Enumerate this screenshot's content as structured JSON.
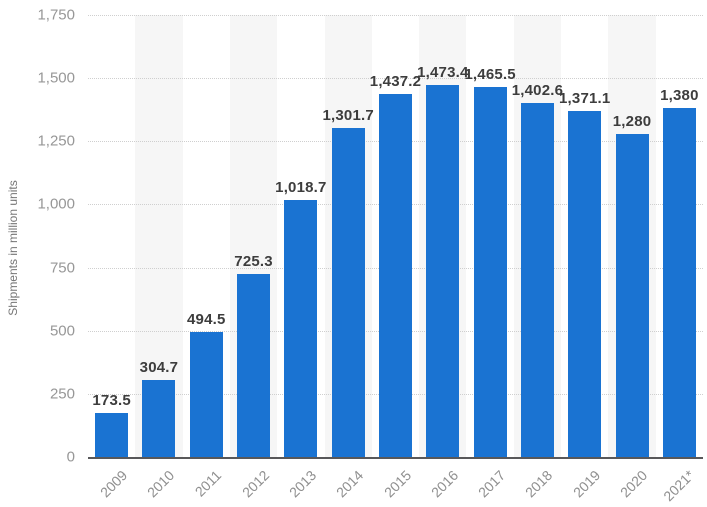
{
  "chart_data": {
    "type": "bar",
    "title": "",
    "ylabel": "Shipments in million units",
    "xlabel": "",
    "categories": [
      "2009",
      "2010",
      "2011",
      "2012",
      "2013",
      "2014",
      "2015",
      "2016",
      "2017",
      "2018",
      "2019",
      "2020",
      "2021*"
    ],
    "values": [
      173.5,
      304.7,
      494.5,
      725.3,
      1018.7,
      1301.7,
      1437.2,
      1473.4,
      1465.5,
      1402.6,
      1371.1,
      1280,
      1380
    ],
    "value_labels": [
      "173.5",
      "304.7",
      "494.5",
      "725.3",
      "1,018.7",
      "1,301.7",
      "1,437.2",
      "1,473.4",
      "1,465.5",
      "1,402.6",
      "1,371.1",
      "1,280",
      "1,380"
    ],
    "ylim": [
      0,
      1750
    ],
    "ytick_step": 250,
    "ytick_labels": [
      "0",
      "250",
      "500",
      "750",
      "1,000",
      "1,250",
      "1,500",
      "1,750"
    ],
    "grid": "horizontal-dotted",
    "legend_position": "none",
    "bar_color": "#1a73d2",
    "plotband_color": "#f6f6f6",
    "plotband_pattern": "alternating columns, gray on odd indexes (2010, 2012, 2014, 2016, 2018, 2020)"
  }
}
